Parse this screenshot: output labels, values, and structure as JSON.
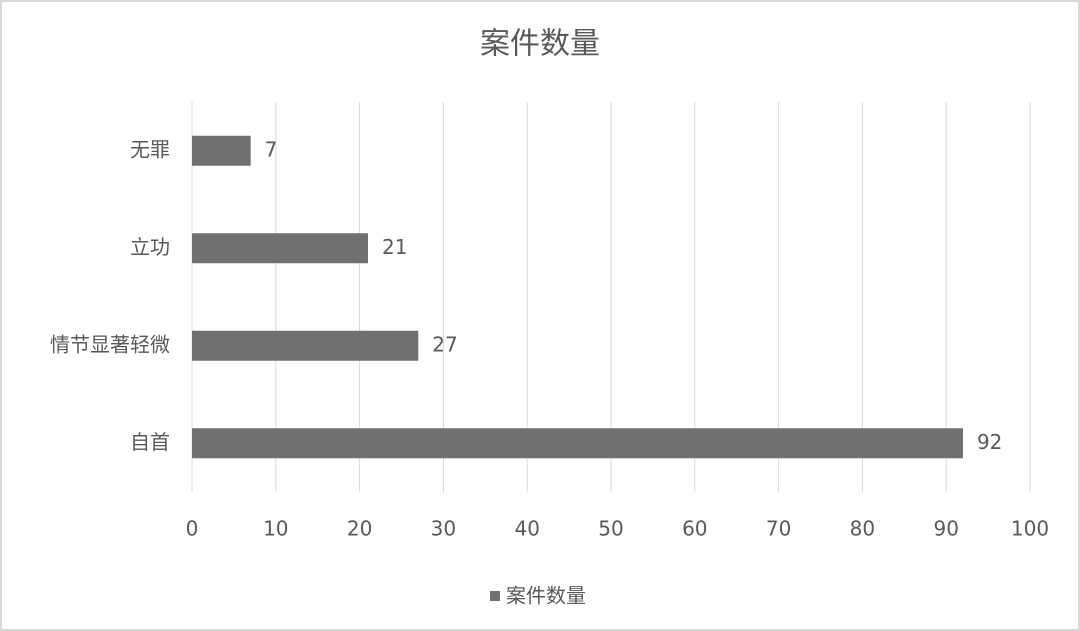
{
  "chart_data": {
    "type": "bar",
    "orientation": "horizontal",
    "title": "案件数量",
    "categories": [
      "自首",
      "情节显著轻微",
      "立功",
      "无罪"
    ],
    "series": [
      {
        "name": "案件数量",
        "color": "#707070",
        "values": [
          92,
          27,
          21,
          7
        ]
      }
    ],
    "xlim": [
      0,
      100
    ],
    "xticks": [
      0,
      10,
      20,
      30,
      40,
      50,
      60,
      70,
      80,
      90,
      100
    ],
    "grid": true,
    "legend": "bottom"
  }
}
